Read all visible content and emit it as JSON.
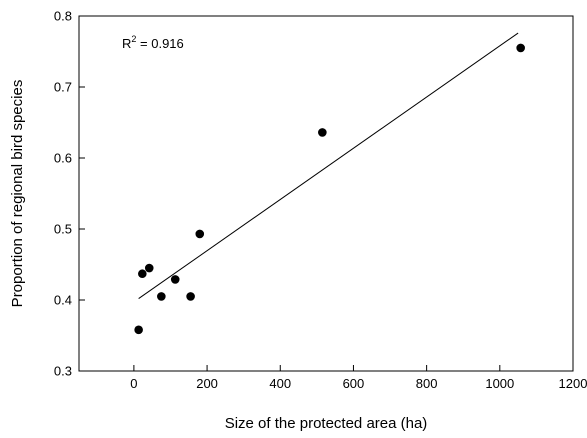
{
  "chart_data": {
    "type": "scatter",
    "title": "",
    "xlabel": "Size of the protected area (ha)",
    "ylabel": "Proportion of regional bird species",
    "xlim": [
      -150,
      1200
    ],
    "ylim": [
      0.3,
      0.8
    ],
    "x_ticks": [
      0,
      200,
      400,
      600,
      800,
      1000,
      1200
    ],
    "y_ticks": [
      0.3,
      0.4,
      0.5,
      0.6,
      0.7,
      0.8
    ],
    "x_tick_labels": [
      "0",
      "200",
      "400",
      "600",
      "800",
      "1000",
      "1200"
    ],
    "y_tick_labels": [
      "0.3",
      "0.4",
      "0.5",
      "0.6",
      "0.7",
      "0.8"
    ],
    "grid": false,
    "points": [
      {
        "x": 13,
        "y": 0.358
      },
      {
        "x": 23,
        "y": 0.437
      },
      {
        "x": 42,
        "y": 0.445
      },
      {
        "x": 75,
        "y": 0.405
      },
      {
        "x": 113,
        "y": 0.429
      },
      {
        "x": 155,
        "y": 0.405
      },
      {
        "x": 180,
        "y": 0.493
      },
      {
        "x": 515,
        "y": 0.636
      },
      {
        "x": 1057,
        "y": 0.755
      }
    ],
    "fit_line": {
      "x": [
        13,
        1050
      ],
      "y": [
        0.402,
        0.776
      ]
    },
    "annotation": {
      "prefix": "R",
      "sup": "2",
      "suffix": " = 0.916"
    }
  }
}
